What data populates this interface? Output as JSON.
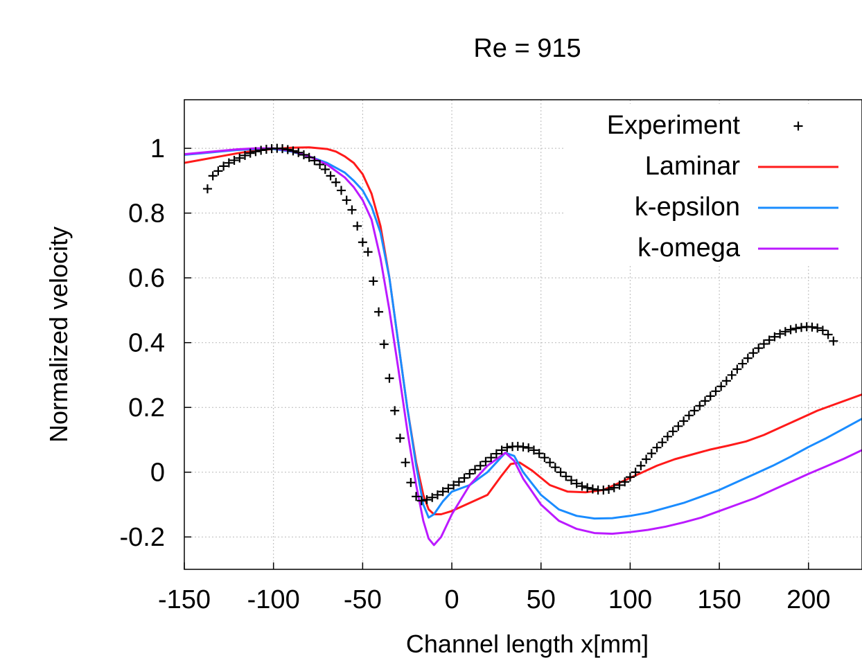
{
  "chart_data": {
    "type": "line",
    "title": "Re = 915",
    "xlabel": "Channel length x[mm]",
    "ylabel": "Normalized velocity",
    "xlim": [
      -150,
      230
    ],
    "ylim": [
      -0.3,
      1.15
    ],
    "xticks": [
      -150,
      -100,
      -50,
      0,
      50,
      100,
      150,
      200
    ],
    "yticks": [
      -0.2,
      0,
      0.2,
      0.4,
      0.6,
      0.8,
      1
    ],
    "xtick_labels": [
      "-150",
      "-100",
      "-50",
      "0",
      "50",
      "100",
      "150",
      "200"
    ],
    "ytick_labels": [
      "-0.2",
      "0",
      "0.2",
      "0.4",
      "0.6",
      "0.8",
      "1"
    ],
    "grid": true,
    "legend_position": "top-right",
    "series": [
      {
        "name": "Experiment",
        "style": "points",
        "marker": "+",
        "color": "#000000",
        "points": [
          [
            -137,
            0.875
          ],
          [
            -134,
            0.915
          ],
          [
            -131,
            0.93
          ],
          [
            -128,
            0.945
          ],
          [
            -125,
            0.955
          ],
          [
            -122,
            0.963
          ],
          [
            -119,
            0.97
          ],
          [
            -116,
            0.978
          ],
          [
            -113,
            0.985
          ],
          [
            -110,
            0.99
          ],
          [
            -107,
            0.994
          ],
          [
            -104,
            0.997
          ],
          [
            -101,
            0.999
          ],
          [
            -98,
            1.0
          ],
          [
            -95,
            0.999
          ],
          [
            -92,
            0.996
          ],
          [
            -89,
            0.992
          ],
          [
            -86,
            0.987
          ],
          [
            -83,
            0.98
          ],
          [
            -80,
            0.972
          ],
          [
            -77,
            0.962
          ],
          [
            -74,
            0.95
          ],
          [
            -71,
            0.935
          ],
          [
            -68,
            0.915
          ],
          [
            -65,
            0.895
          ],
          [
            -62,
            0.87
          ],
          [
            -59,
            0.84
          ],
          [
            -56,
            0.81
          ],
          [
            -53,
            0.76
          ],
          [
            -50,
            0.71
          ],
          [
            -47,
            0.68
          ],
          [
            -44,
            0.59
          ],
          [
            -41,
            0.495
          ],
          [
            -38,
            0.395
          ],
          [
            -35,
            0.29
          ],
          [
            -32,
            0.19
          ],
          [
            -29,
            0.105
          ],
          [
            -26,
            0.03
          ],
          [
            -23,
            -0.032
          ],
          [
            -20,
            -0.075
          ],
          [
            -17,
            -0.088
          ],
          [
            -14,
            -0.085
          ],
          [
            -11,
            -0.078
          ],
          [
            -8,
            -0.07
          ],
          [
            -5,
            -0.06
          ],
          [
            -2,
            -0.05
          ],
          [
            1,
            -0.04
          ],
          [
            4,
            -0.03
          ],
          [
            7,
            -0.018
          ],
          [
            10,
            -0.005
          ],
          [
            13,
            0.008
          ],
          [
            16,
            0.02
          ],
          [
            19,
            0.033
          ],
          [
            22,
            0.045
          ],
          [
            25,
            0.057
          ],
          [
            28,
            0.068
          ],
          [
            31,
            0.076
          ],
          [
            34,
            0.079
          ],
          [
            37,
            0.08
          ],
          [
            40,
            0.078
          ],
          [
            43,
            0.075
          ],
          [
            46,
            0.068
          ],
          [
            49,
            0.058
          ],
          [
            52,
            0.045
          ],
          [
            55,
            0.03
          ],
          [
            58,
            0.015
          ],
          [
            61,
            0.0
          ],
          [
            64,
            -0.013
          ],
          [
            67,
            -0.025
          ],
          [
            70,
            -0.035
          ],
          [
            73,
            -0.043
          ],
          [
            76,
            -0.048
          ],
          [
            79,
            -0.052
          ],
          [
            82,
            -0.055
          ],
          [
            85,
            -0.055
          ],
          [
            88,
            -0.053
          ],
          [
            91,
            -0.048
          ],
          [
            94,
            -0.04
          ],
          [
            97,
            -0.03
          ],
          [
            100,
            -0.015
          ],
          [
            103,
            0.0
          ],
          [
            106,
            0.02
          ],
          [
            109,
            0.04
          ],
          [
            112,
            0.058
          ],
          [
            115,
            0.076
          ],
          [
            118,
            0.092
          ],
          [
            121,
            0.11
          ],
          [
            124,
            0.126
          ],
          [
            127,
            0.142
          ],
          [
            130,
            0.158
          ],
          [
            133,
            0.175
          ],
          [
            136,
            0.19
          ],
          [
            139,
            0.205
          ],
          [
            142,
            0.22
          ],
          [
            145,
            0.235
          ],
          [
            148,
            0.25
          ],
          [
            151,
            0.265
          ],
          [
            154,
            0.282
          ],
          [
            157,
            0.3
          ],
          [
            160,
            0.318
          ],
          [
            163,
            0.335
          ],
          [
            166,
            0.352
          ],
          [
            169,
            0.368
          ],
          [
            172,
            0.383
          ],
          [
            175,
            0.396
          ],
          [
            178,
            0.408
          ],
          [
            181,
            0.418
          ],
          [
            184,
            0.427
          ],
          [
            187,
            0.434
          ],
          [
            190,
            0.44
          ],
          [
            193,
            0.444
          ],
          [
            196,
            0.447
          ],
          [
            199,
            0.449
          ],
          [
            202,
            0.448
          ],
          [
            205,
            0.445
          ],
          [
            208,
            0.438
          ],
          [
            211,
            0.425
          ],
          [
            214,
            0.405
          ]
        ]
      },
      {
        "name": "Laminar",
        "style": "line",
        "color": "#ff1a1a",
        "points": [
          [
            -150,
            0.955
          ],
          [
            -140,
            0.965
          ],
          [
            -130,
            0.975
          ],
          [
            -120,
            0.985
          ],
          [
            -110,
            0.993
          ],
          [
            -100,
            0.998
          ],
          [
            -90,
            1.002
          ],
          [
            -80,
            1.003
          ],
          [
            -70,
            0.998
          ],
          [
            -65,
            0.99
          ],
          [
            -60,
            0.975
          ],
          [
            -55,
            0.955
          ],
          [
            -50,
            0.92
          ],
          [
            -45,
            0.86
          ],
          [
            -40,
            0.76
          ],
          [
            -35,
            0.6
          ],
          [
            -30,
            0.4
          ],
          [
            -25,
            0.2
          ],
          [
            -20,
            0.03
          ],
          [
            -16,
            -0.07
          ],
          [
            -13,
            -0.115
          ],
          [
            -10,
            -0.13
          ],
          [
            -6,
            -0.13
          ],
          [
            0,
            -0.12
          ],
          [
            10,
            -0.095
          ],
          [
            20,
            -0.07
          ],
          [
            28,
            -0.01
          ],
          [
            33,
            0.025
          ],
          [
            38,
            0.03
          ],
          [
            45,
            0.005
          ],
          [
            55,
            -0.04
          ],
          [
            65,
            -0.06
          ],
          [
            75,
            -0.062
          ],
          [
            85,
            -0.055
          ],
          [
            95,
            -0.03
          ],
          [
            105,
            -0.005
          ],
          [
            115,
            0.02
          ],
          [
            125,
            0.04
          ],
          [
            135,
            0.055
          ],
          [
            145,
            0.07
          ],
          [
            155,
            0.082
          ],
          [
            165,
            0.095
          ],
          [
            175,
            0.115
          ],
          [
            185,
            0.14
          ],
          [
            195,
            0.165
          ],
          [
            205,
            0.19
          ],
          [
            215,
            0.21
          ],
          [
            230,
            0.24
          ]
        ]
      },
      {
        "name": "k-epsilon",
        "style": "line",
        "color": "#1a8cff",
        "points": [
          [
            -150,
            0.98
          ],
          [
            -140,
            0.985
          ],
          [
            -130,
            0.99
          ],
          [
            -120,
            0.995
          ],
          [
            -110,
            0.998
          ],
          [
            -100,
            0.998
          ],
          [
            -90,
            0.99
          ],
          [
            -80,
            0.975
          ],
          [
            -70,
            0.955
          ],
          [
            -60,
            0.925
          ],
          [
            -55,
            0.9
          ],
          [
            -50,
            0.87
          ],
          [
            -45,
            0.82
          ],
          [
            -40,
            0.74
          ],
          [
            -35,
            0.6
          ],
          [
            -30,
            0.4
          ],
          [
            -25,
            0.2
          ],
          [
            -20,
            0.02
          ],
          [
            -16,
            -0.1
          ],
          [
            -13,
            -0.14
          ],
          [
            -10,
            -0.13
          ],
          [
            -5,
            -0.09
          ],
          [
            0,
            -0.06
          ],
          [
            10,
            -0.04
          ],
          [
            20,
            0.0
          ],
          [
            30,
            0.06
          ],
          [
            35,
            0.05
          ],
          [
            40,
            0.0
          ],
          [
            50,
            -0.07
          ],
          [
            60,
            -0.115
          ],
          [
            70,
            -0.135
          ],
          [
            80,
            -0.143
          ],
          [
            90,
            -0.142
          ],
          [
            100,
            -0.135
          ],
          [
            110,
            -0.125
          ],
          [
            120,
            -0.11
          ],
          [
            130,
            -0.095
          ],
          [
            140,
            -0.075
          ],
          [
            150,
            -0.055
          ],
          [
            160,
            -0.03
          ],
          [
            170,
            -0.005
          ],
          [
            180,
            0.02
          ],
          [
            190,
            0.048
          ],
          [
            200,
            0.078
          ],
          [
            210,
            0.105
          ],
          [
            220,
            0.135
          ],
          [
            230,
            0.165
          ]
        ]
      },
      {
        "name": "k-omega",
        "style": "line",
        "color": "#bb1aff",
        "points": [
          [
            -150,
            0.982
          ],
          [
            -140,
            0.987
          ],
          [
            -130,
            0.992
          ],
          [
            -120,
            0.997
          ],
          [
            -110,
            1.0
          ],
          [
            -100,
            1.0
          ],
          [
            -90,
            0.992
          ],
          [
            -80,
            0.975
          ],
          [
            -70,
            0.95
          ],
          [
            -60,
            0.91
          ],
          [
            -55,
            0.88
          ],
          [
            -50,
            0.84
          ],
          [
            -45,
            0.78
          ],
          [
            -40,
            0.66
          ],
          [
            -35,
            0.5
          ],
          [
            -30,
            0.32
          ],
          [
            -25,
            0.13
          ],
          [
            -20,
            -0.04
          ],
          [
            -16,
            -0.15
          ],
          [
            -13,
            -0.205
          ],
          [
            -10,
            -0.225
          ],
          [
            -6,
            -0.2
          ],
          [
            0,
            -0.13
          ],
          [
            10,
            -0.04
          ],
          [
            20,
            0.02
          ],
          [
            30,
            0.06
          ],
          [
            35,
            0.035
          ],
          [
            40,
            -0.02
          ],
          [
            50,
            -0.1
          ],
          [
            60,
            -0.15
          ],
          [
            70,
            -0.175
          ],
          [
            80,
            -0.188
          ],
          [
            90,
            -0.19
          ],
          [
            100,
            -0.185
          ],
          [
            110,
            -0.178
          ],
          [
            120,
            -0.168
          ],
          [
            130,
            -0.155
          ],
          [
            140,
            -0.14
          ],
          [
            150,
            -0.12
          ],
          [
            160,
            -0.1
          ],
          [
            170,
            -0.08
          ],
          [
            180,
            -0.055
          ],
          [
            190,
            -0.03
          ],
          [
            200,
            -0.005
          ],
          [
            210,
            0.018
          ],
          [
            220,
            0.042
          ],
          [
            230,
            0.068
          ]
        ]
      }
    ]
  }
}
